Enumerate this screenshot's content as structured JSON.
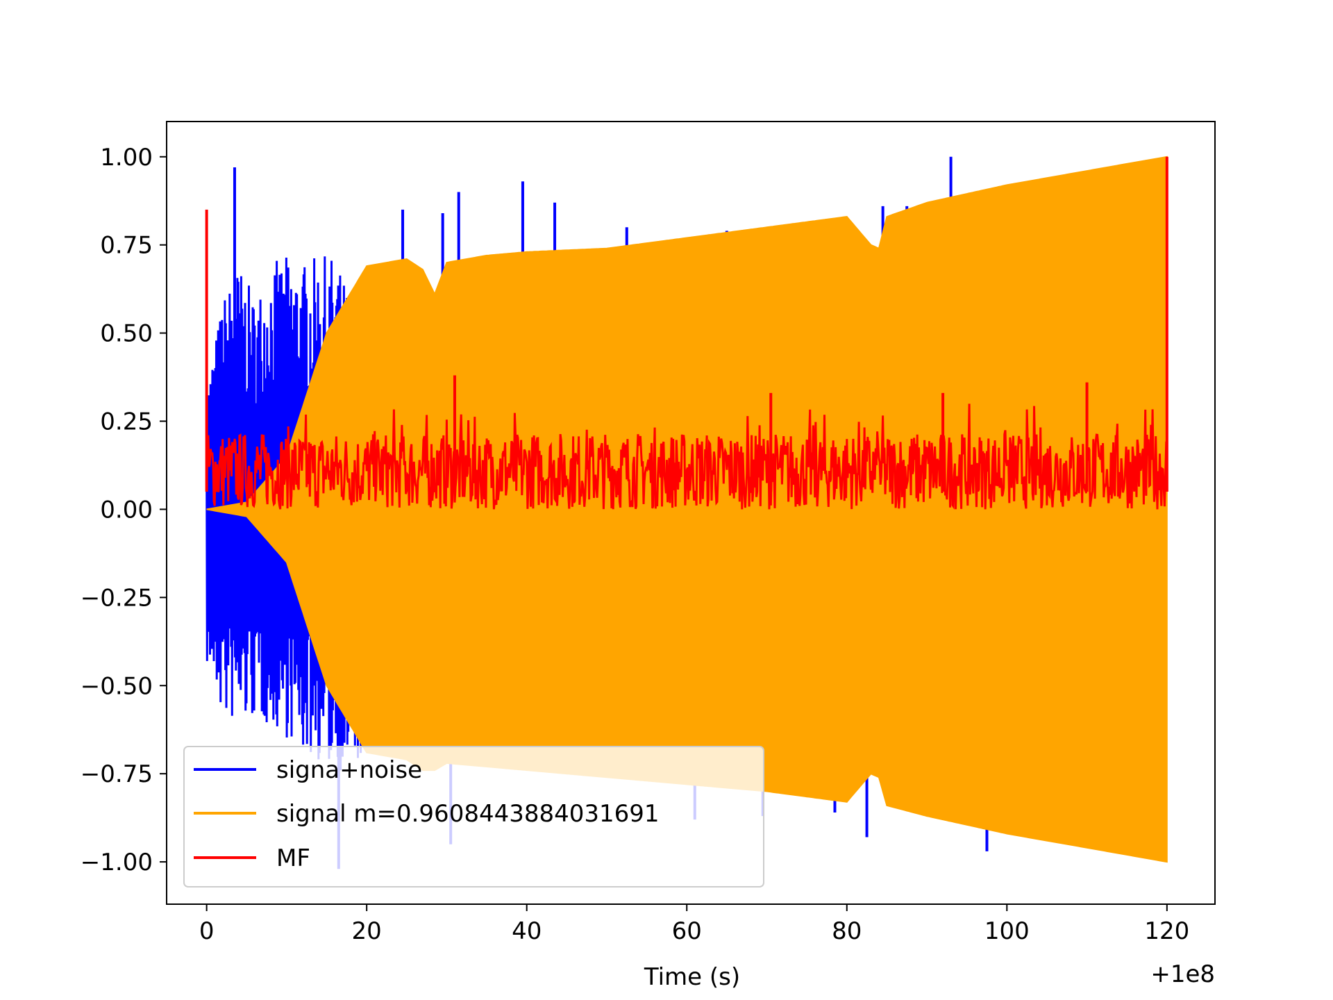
{
  "chart_data": {
    "type": "line",
    "title": "",
    "xlabel": "Time (s)",
    "ylabel": "",
    "x_offset_label": "+1e8",
    "xlim": [
      -5,
      126
    ],
    "ylim": [
      -1.12,
      1.1
    ],
    "x_ticks": [
      0,
      20,
      40,
      60,
      80,
      100,
      120
    ],
    "x_tick_labels": [
      "0",
      "20",
      "40",
      "60",
      "80",
      "100",
      "120"
    ],
    "y_ticks": [
      1.0,
      0.75,
      0.5,
      0.25,
      0.0,
      -0.25,
      -0.5,
      -0.75,
      -1.0
    ],
    "y_tick_labels": [
      "1.00",
      "0.75",
      "0.50",
      "0.25",
      "0.00",
      "−0.25",
      "−0.50",
      "−0.75",
      "−1.00"
    ],
    "grid": false,
    "legend_position": "lower-left",
    "series": [
      {
        "name": "signa+noise",
        "color": "#0000ff",
        "envelope": {
          "x": [
            0,
            2,
            4,
            6,
            8,
            10,
            12,
            14,
            16,
            18,
            20
          ],
          "upper": [
            0.35,
            0.6,
            0.7,
            0.6,
            0.7,
            0.72,
            0.7,
            0.72,
            0.72,
            0.6,
            0.3
          ],
          "lower": [
            -0.45,
            -0.6,
            -0.62,
            -0.6,
            -0.62,
            -0.65,
            -0.7,
            -0.72,
            -0.75,
            -0.75,
            -0.72
          ]
        },
        "spikes": [
          {
            "x": 3.5,
            "y": 0.97
          },
          {
            "x": 24.5,
            "y": 0.85
          },
          {
            "x": 31.5,
            "y": 0.9
          },
          {
            "x": 29.5,
            "y": 0.84
          },
          {
            "x": 39.5,
            "y": 0.93
          },
          {
            "x": 43.5,
            "y": 0.87
          },
          {
            "x": 52.5,
            "y": 0.8
          },
          {
            "x": 84.5,
            "y": 0.86
          },
          {
            "x": 87.5,
            "y": 0.86
          },
          {
            "x": 93.0,
            "y": 1.0
          },
          {
            "x": 100.0,
            "y": 0.91
          },
          {
            "x": 65.0,
            "y": 0.79
          },
          {
            "x": 16.5,
            "y": -1.02
          },
          {
            "x": 30.5,
            "y": -0.95
          },
          {
            "x": 61.0,
            "y": -0.88
          },
          {
            "x": 69.5,
            "y": -0.87
          },
          {
            "x": 78.5,
            "y": -0.86
          },
          {
            "x": 82.5,
            "y": -0.93
          },
          {
            "x": 97.5,
            "y": -0.97
          },
          {
            "x": 117.5,
            "y": -0.99
          }
        ]
      },
      {
        "name": "signal m=0.9608443884031691",
        "color": "#ffa500",
        "envelope": {
          "x": [
            0,
            5,
            10,
            15,
            20,
            25,
            27,
            28.5,
            30,
            35,
            40,
            50,
            60,
            70,
            80,
            83,
            84,
            85,
            90,
            100,
            110,
            120
          ],
          "upper": [
            0.0,
            0.02,
            0.15,
            0.5,
            0.69,
            0.71,
            0.68,
            0.61,
            0.7,
            0.72,
            0.73,
            0.74,
            0.77,
            0.8,
            0.83,
            0.75,
            0.74,
            0.83,
            0.87,
            0.92,
            0.96,
            1.0
          ],
          "lower": [
            0.0,
            -0.02,
            -0.15,
            -0.5,
            -0.69,
            -0.71,
            -0.74,
            -0.74,
            -0.72,
            -0.73,
            -0.74,
            -0.76,
            -0.78,
            -0.8,
            -0.83,
            -0.75,
            -0.76,
            -0.84,
            -0.87,
            -0.92,
            -0.96,
            -1.0
          ]
        }
      },
      {
        "name": "MF",
        "color": "#ff0000",
        "band": {
          "low": 0.0,
          "high": 0.22,
          "typical_peak": 0.3
        },
        "spikes": [
          {
            "x": 0.0,
            "y": 0.85
          },
          {
            "x": 31.0,
            "y": 0.38
          },
          {
            "x": 110.0,
            "y": 0.36
          },
          {
            "x": 70.5,
            "y": 0.33
          },
          {
            "x": 92.0,
            "y": 0.33
          },
          {
            "x": 120.0,
            "y": 1.0
          }
        ]
      }
    ]
  }
}
